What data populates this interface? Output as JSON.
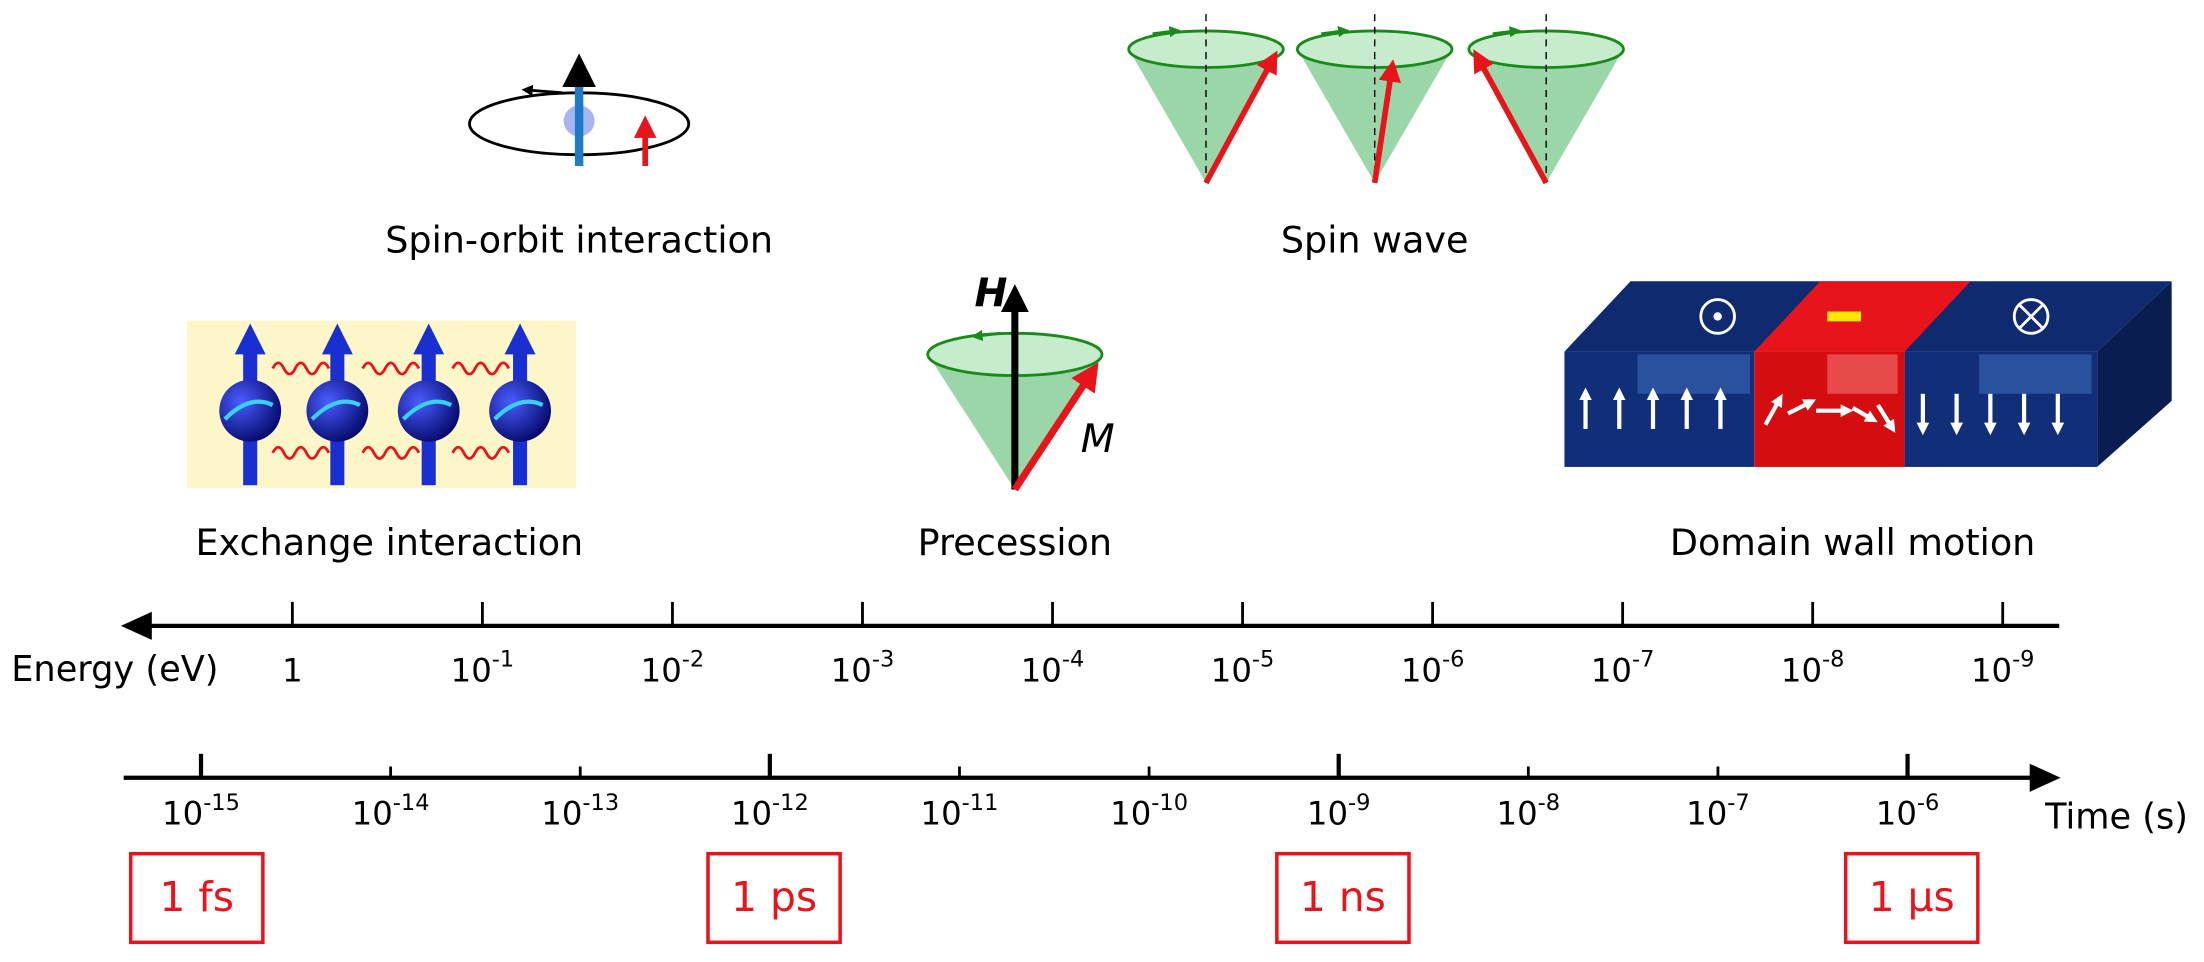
{
  "labels": {
    "spin_orbit": "Spin-orbit interaction",
    "spin_wave": "Spin wave",
    "exchange": "Exchange interaction",
    "precession": "Precession",
    "domain_wall": "Domain wall motion",
    "field": "H",
    "magnetization": "M"
  },
  "energy_axis": {
    "title": "Energy (eV)",
    "ticks": [
      {
        "base": "1"
      },
      {
        "base": "10",
        "exp": "-1"
      },
      {
        "base": "10",
        "exp": "-2"
      },
      {
        "base": "10",
        "exp": "-3"
      },
      {
        "base": "10",
        "exp": "-4"
      },
      {
        "base": "10",
        "exp": "-5"
      },
      {
        "base": "10",
        "exp": "-6"
      },
      {
        "base": "10",
        "exp": "-7"
      },
      {
        "base": "10",
        "exp": "-8"
      },
      {
        "base": "10",
        "exp": "-9"
      }
    ]
  },
  "time_axis": {
    "title": "Time (s)",
    "ticks": [
      {
        "base": "10",
        "exp": "-15"
      },
      {
        "base": "10",
        "exp": "-14"
      },
      {
        "base": "10",
        "exp": "-13"
      },
      {
        "base": "10",
        "exp": "-12"
      },
      {
        "base": "10",
        "exp": "-11"
      },
      {
        "base": "10",
        "exp": "-10"
      },
      {
        "base": "10",
        "exp": "-9"
      },
      {
        "base": "10",
        "exp": "-8"
      },
      {
        "base": "10",
        "exp": "-7"
      },
      {
        "base": "10",
        "exp": "-6"
      }
    ]
  },
  "unit_boxes": [
    "1 fs",
    "1 ps",
    "1 ns",
    "1 µs"
  ]
}
